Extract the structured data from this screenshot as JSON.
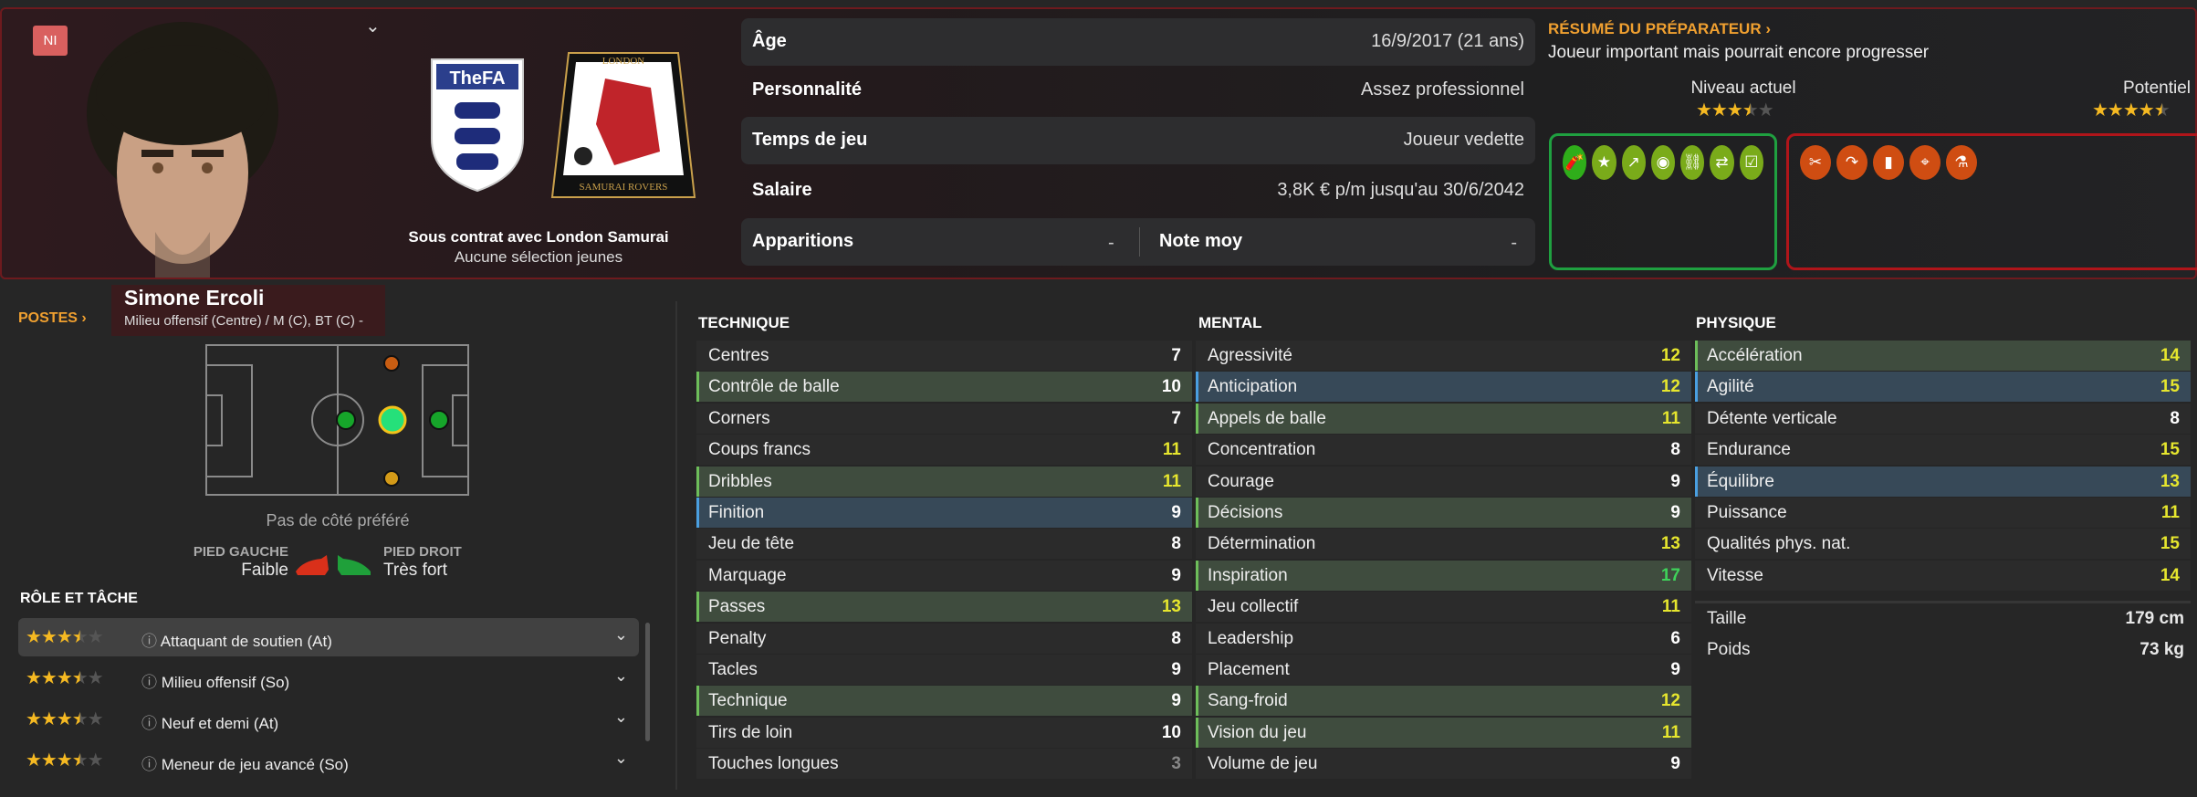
{
  "header": {
    "badge": "NI",
    "club_line": "Sous contrat avec London Samurai",
    "youth_line": "Aucune sélection jeunes",
    "logos": {
      "nation": "TheFA",
      "club_top": "LONDON",
      "club_bottom": "SAMURAI ROVERS"
    },
    "info": [
      {
        "label": "Âge",
        "value": "16/9/2017 (21 ans)"
      },
      {
        "label": "Personnalité",
        "value": "Assez professionnel"
      },
      {
        "label": "Temps de jeu",
        "value": "Joueur vedette"
      },
      {
        "label": "Salaire",
        "value": "3,8K € p/m jusqu'au 30/6/2042"
      }
    ],
    "apps_label": "Apparitions",
    "apps_value": "-",
    "rating_label": "Note moy",
    "rating_value": "-"
  },
  "coach": {
    "title": "RÉSUMÉ DU PRÉPARATEUR ›",
    "summary": "Joueur important mais pourrait encore progresser",
    "current_label": "Niveau actuel",
    "current_stars": 3.5,
    "potential_label": "Potentiel",
    "potential_stars": 4.5,
    "strengths_icons": [
      "dynamite-icon",
      "star-icon",
      "trend-up-icon",
      "head-target-icon",
      "link-icon",
      "arrows-icon",
      "checklist-icon"
    ],
    "weakness_icons": [
      "broken-bone-icon",
      "ball-curve-icon",
      "phone-hand-icon",
      "cone-target-icon",
      "flask-icon"
    ],
    "colors": {
      "strength_border": "#1fa040",
      "weakness_border": "#b0151a",
      "strength_icon": "#7aab1a",
      "weakness_icon": "#cf4d12"
    }
  },
  "player": {
    "name": "Simone Ercoli",
    "positions": "Milieu offensif (Centre) / M (C), BT (C) -"
  },
  "postes_label": "POSTES ›",
  "side_pref": "Pas de côté préféré",
  "left_foot_label": "PIED GAUCHE",
  "left_foot": "Faible",
  "right_foot_label": "PIED DROIT",
  "right_foot": "Très fort",
  "roles_title": "RÔLE ET TÂCHE",
  "roles": [
    {
      "label": "Attaquant de soutien (At)",
      "stars": 3.5
    },
    {
      "label": "Milieu offensif (So)",
      "stars": 3.5
    },
    {
      "label": "Neuf et demi (At)",
      "stars": 3.5
    },
    {
      "label": "Meneur de jeu avancé (So)",
      "stars": 3.5
    }
  ],
  "attributes": {
    "technique": {
      "title": "TECHNIQUE",
      "rows": [
        {
          "n": "Centres",
          "v": 7,
          "h": ""
        },
        {
          "n": "Contrôle de balle",
          "v": 10,
          "h": "g"
        },
        {
          "n": "Corners",
          "v": 7,
          "h": ""
        },
        {
          "n": "Coups francs",
          "v": 11,
          "h": ""
        },
        {
          "n": "Dribbles",
          "v": 11,
          "h": "g"
        },
        {
          "n": "Finition",
          "v": 9,
          "h": "b"
        },
        {
          "n": "Jeu de tête",
          "v": 8,
          "h": ""
        },
        {
          "n": "Marquage",
          "v": 9,
          "h": ""
        },
        {
          "n": "Passes",
          "v": 13,
          "h": "g"
        },
        {
          "n": "Penalty",
          "v": 8,
          "h": ""
        },
        {
          "n": "Tacles",
          "v": 9,
          "h": ""
        },
        {
          "n": "Technique",
          "v": 9,
          "h": "g"
        },
        {
          "n": "Tirs de loin",
          "v": 10,
          "h": ""
        },
        {
          "n": "Touches longues",
          "v": 3,
          "h": ""
        }
      ]
    },
    "mental": {
      "title": "MENTAL",
      "rows": [
        {
          "n": "Agressivité",
          "v": 12,
          "h": ""
        },
        {
          "n": "Anticipation",
          "v": 12,
          "h": "b"
        },
        {
          "n": "Appels de balle",
          "v": 11,
          "h": "g"
        },
        {
          "n": "Concentration",
          "v": 8,
          "h": ""
        },
        {
          "n": "Courage",
          "v": 9,
          "h": ""
        },
        {
          "n": "Décisions",
          "v": 9,
          "h": "g"
        },
        {
          "n": "Détermination",
          "v": 13,
          "h": ""
        },
        {
          "n": "Inspiration",
          "v": 17,
          "h": "g"
        },
        {
          "n": "Jeu collectif",
          "v": 11,
          "h": ""
        },
        {
          "n": "Leadership",
          "v": 6,
          "h": ""
        },
        {
          "n": "Placement",
          "v": 9,
          "h": ""
        },
        {
          "n": "Sang-froid",
          "v": 12,
          "h": "g"
        },
        {
          "n": "Vision du jeu",
          "v": 11,
          "h": "g"
        },
        {
          "n": "Volume de jeu",
          "v": 9,
          "h": ""
        }
      ]
    },
    "physique": {
      "title": "PHYSIQUE",
      "rows": [
        {
          "n": "Accélération",
          "v": 14,
          "h": "g"
        },
        {
          "n": "Agilité",
          "v": 15,
          "h": "b"
        },
        {
          "n": "Détente verticale",
          "v": 8,
          "h": ""
        },
        {
          "n": "Endurance",
          "v": 15,
          "h": ""
        },
        {
          "n": "Équilibre",
          "v": 13,
          "h": "b"
        },
        {
          "n": "Puissance",
          "v": 11,
          "h": ""
        },
        {
          "n": "Qualités phys. nat.",
          "v": 15,
          "h": ""
        },
        {
          "n": "Vitesse",
          "v": 14,
          "h": ""
        }
      ]
    },
    "height_label": "Taille",
    "height": "179 cm",
    "weight_label": "Poids",
    "weight": "73 kg"
  }
}
